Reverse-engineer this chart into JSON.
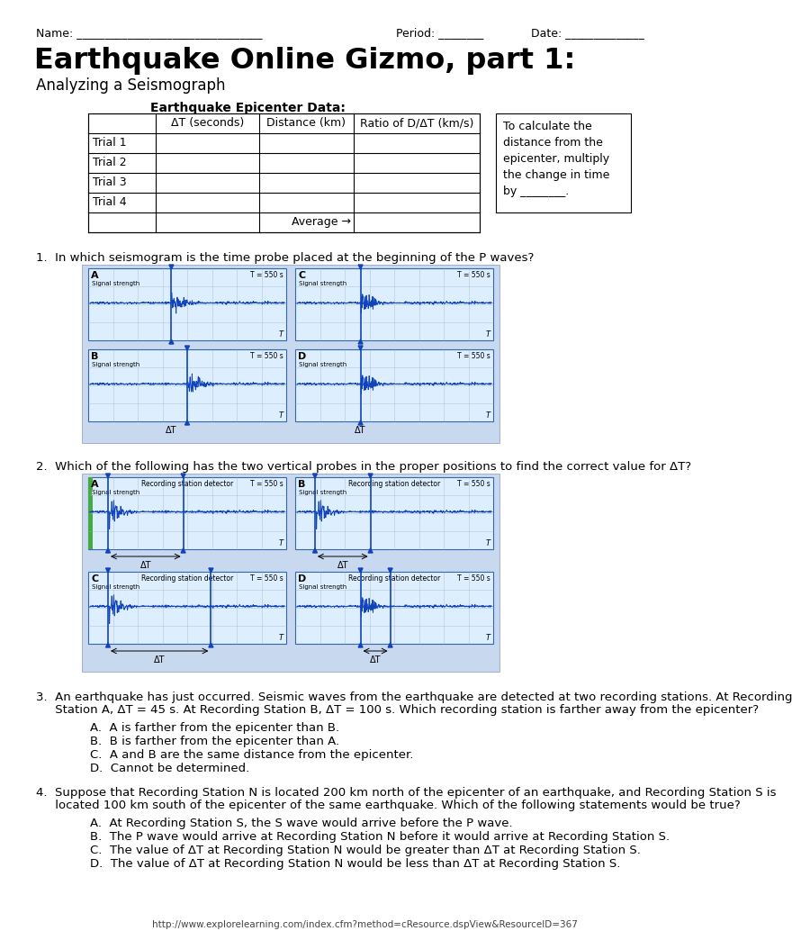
{
  "title": "Earthquake Online Gizmo, part 1:",
  "subtitle": "Analyzing a Seismograph",
  "table_title": "Earthquake Epicenter Data:",
  "table_headers": [
    " ",
    "ΔT (seconds)",
    "Distance (km)",
    "Ratio of D/ΔT (km/s)"
  ],
  "table_rows": [
    "Trial 1",
    "Trial 2",
    "Trial 3",
    "Trial 4"
  ],
  "table_avg": "Average →",
  "side_note": "To calculate the\ndistance from the\nepicenter, multiply\nthe change in time\nby ________.",
  "q1_text": "1.  In which seismogram is the time probe placed at the beginning of the P waves?",
  "q2_text": "2.  Which of the following has the two vertical probes in the proper positions to find the correct value for ΔT?",
  "q3_line1": "3.  An earthquake has just occurred. Seismic waves from the earthquake are detected at two recording stations. At Recording",
  "q3_line2": "     Station A, ΔT = 45 s. At Recording Station B, ΔT = 100 s. Which recording station is farther away from the epicenter?",
  "q3_choices": [
    "A.  A is farther from the epicenter than B.",
    "B.  B is farther from the epicenter than A.",
    "C.  A and B are the same distance from the epicenter.",
    "D.  Cannot be determined."
  ],
  "q4_line1": "4.  Suppose that Recording Station N is located 200 km north of the epicenter of an earthquake, and Recording Station S is",
  "q4_line2": "     located 100 km south of the epicenter of the same earthquake. Which of the following statements would be true?",
  "q4_choices": [
    "A.  At Recording Station S, the S wave would arrive before the P wave.",
    "B.  The P wave would arrive at Recording Station N before it would arrive at Recording Station S.",
    "C.  The value of ΔT at Recording Station N would be greater than ΔT at Recording Station S.",
    "D.  The value of ΔT at Recording Station N would be less than ΔT at Recording Station S."
  ],
  "footer": "http://www.explorelearning.com/index.cfm?method=cResource.dspView&ResourceID=367",
  "bg_color": "#ffffff",
  "seismo_bg": "#ddeeff",
  "seismo_line": "#1144bb",
  "probe_color": "#1144bb",
  "grid_color": "#99aabb",
  "green_color": "#44aa44"
}
